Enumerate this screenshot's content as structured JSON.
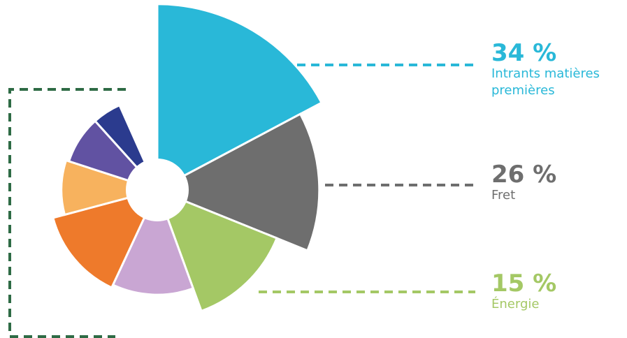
{
  "chart_data": {
    "type": "rose",
    "categories": [
      "Intrants matières premières",
      "Fret",
      "Énergie",
      null,
      null,
      null,
      null,
      null
    ],
    "values": [
      34,
      26,
      15,
      7,
      8,
      4,
      3,
      3
    ],
    "value_labels": [
      "34 %",
      "26 %",
      "15 %",
      null,
      null,
      null,
      null,
      null
    ],
    "colors": [
      "#29b8d8",
      "#6e6e6e",
      "#a4c865",
      "#c9a6d3",
      "#ee7a2b",
      "#f7b25e",
      "#6152a2",
      "#2b3b8e"
    ]
  }
}
